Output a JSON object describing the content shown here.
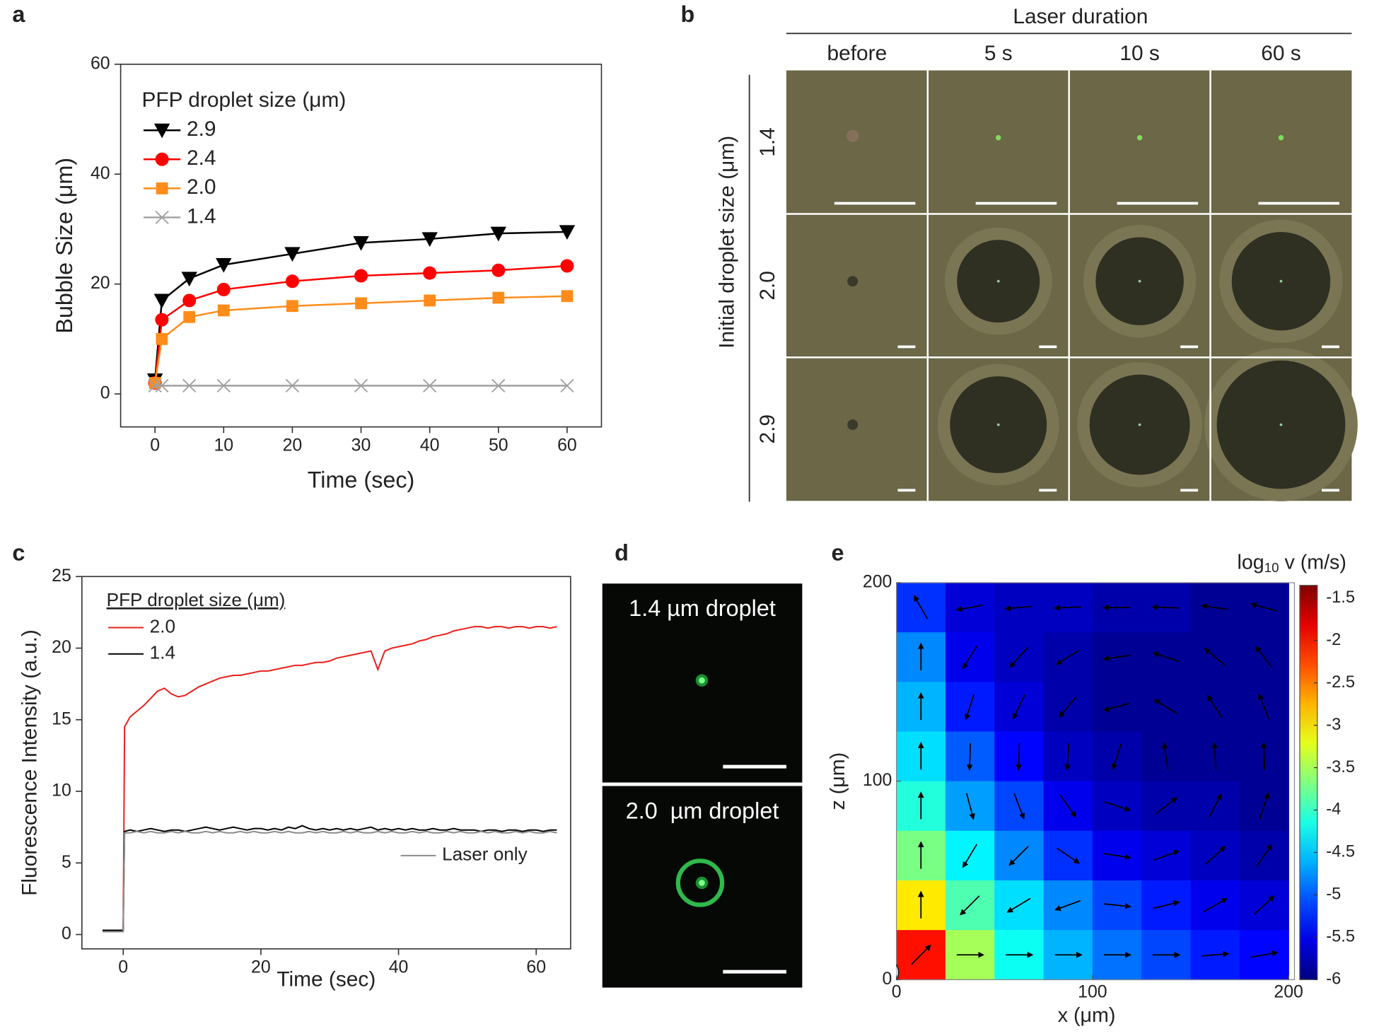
{
  "panel_labels": [
    "a",
    "b",
    "c",
    "d",
    "e"
  ],
  "chart_data": [
    {
      "type": "line",
      "xlabel": "Time (sec)",
      "ylabel": "Bubble Size (μm)",
      "legend_title": "PFP droplet size (μm)",
      "legend": "upper left",
      "x": [
        0,
        1,
        5,
        10,
        20,
        30,
        40,
        50,
        60
      ],
      "series": [
        {
          "name": "2.9",
          "color": "#000000",
          "marker": "triangle-down",
          "values": [
            2.5,
            17,
            21,
            23.5,
            25.5,
            27.5,
            28.2,
            29.2,
            29.5
          ]
        },
        {
          "name": "2.4",
          "color": "#ff0000",
          "marker": "circle",
          "values": [
            2,
            13.5,
            17,
            19,
            20.5,
            21.5,
            22,
            22.5,
            23.3
          ]
        },
        {
          "name": "2.0",
          "color": "#ff8c1a",
          "marker": "square",
          "values": [
            2,
            10,
            14,
            15.2,
            16,
            16.5,
            17,
            17.5,
            17.8
          ]
        },
        {
          "name": "1.4",
          "color": "#a0a0a0",
          "marker": "x",
          "values": [
            1.5,
            1.5,
            1.5,
            1.5,
            1.5,
            1.5,
            1.5,
            1.5,
            1.5
          ]
        }
      ],
      "xlim": [
        -5,
        65
      ],
      "ylim": [
        -6,
        60
      ],
      "xticks": [
        0,
        10,
        20,
        30,
        40,
        50,
        60
      ],
      "yticks": [
        0,
        20,
        40,
        60
      ]
    },
    {
      "type": "line",
      "xlabel": "Time (sec)",
      "ylabel": "Fluorescence Intensity (a.u.)",
      "legend_title": "PFP droplet size (μm)",
      "legend": "upper left",
      "x": [
        -3,
        -2,
        -1,
        0,
        0.2,
        1,
        2,
        3,
        4,
        5,
        6,
        7,
        8,
        9,
        10,
        11,
        12,
        13,
        14,
        15,
        16,
        17,
        18,
        19,
        20,
        21,
        22,
        23,
        24,
        25,
        26,
        27,
        28,
        29,
        30,
        31,
        32,
        33,
        34,
        35,
        36,
        37,
        38,
        39,
        40,
        41,
        42,
        43,
        44,
        45,
        46,
        47,
        48,
        49,
        50,
        51,
        52,
        53,
        54,
        55,
        56,
        57,
        58,
        59,
        60,
        61,
        62,
        63
      ],
      "series": [
        {
          "name": "2.0",
          "color": "#e8201a",
          "values": [
            0.3,
            0.3,
            0.3,
            0.3,
            14.5,
            15.2,
            15.6,
            16.0,
            16.5,
            17.0,
            17.2,
            16.8,
            16.6,
            16.7,
            17.0,
            17.3,
            17.5,
            17.7,
            17.9,
            18.0,
            18.1,
            18.1,
            18.2,
            18.3,
            18.4,
            18.4,
            18.5,
            18.6,
            18.7,
            18.8,
            18.8,
            18.9,
            19.0,
            19.0,
            19.1,
            19.3,
            19.4,
            19.5,
            19.6,
            19.7,
            19.8,
            18.5,
            19.8,
            20.0,
            20.1,
            20.2,
            20.3,
            20.5,
            20.6,
            20.8,
            20.9,
            21.0,
            21.2,
            21.3,
            21.4,
            21.5,
            21.5,
            21.4,
            21.5,
            21.5,
            21.4,
            21.5,
            21.5,
            21.4,
            21.5,
            21.5,
            21.4,
            21.5
          ]
        },
        {
          "name": "1.4",
          "color": "#000000",
          "values": [
            0.3,
            0.3,
            0.3,
            0.3,
            7.2,
            7.3,
            7.2,
            7.3,
            7.4,
            7.3,
            7.2,
            7.3,
            7.3,
            7.2,
            7.3,
            7.4,
            7.5,
            7.4,
            7.3,
            7.4,
            7.5,
            7.4,
            7.3,
            7.4,
            7.4,
            7.3,
            7.4,
            7.3,
            7.5,
            7.4,
            7.6,
            7.4,
            7.3,
            7.4,
            7.3,
            7.4,
            7.3,
            7.4,
            7.3,
            7.4,
            7.5,
            7.3,
            7.4,
            7.3,
            7.4,
            7.3,
            7.4,
            7.3,
            7.3,
            7.4,
            7.3,
            7.3,
            7.4,
            7.3,
            7.3,
            7.3,
            7.2,
            7.3,
            7.3,
            7.2,
            7.3,
            7.3,
            7.2,
            7.3,
            7.3,
            7.2,
            7.3,
            7.3
          ]
        },
        {
          "name": "Laser only",
          "color": "#8c8c8c",
          "legend": "lower right",
          "values": [
            0.2,
            0.2,
            0.2,
            0.2,
            7.1,
            7.1,
            7.2,
            7.1,
            7.2,
            7.1,
            7.1,
            7.2,
            7.1,
            7.2,
            7.1,
            7.1,
            7.2,
            7.1,
            7.2,
            7.1,
            7.1,
            7.2,
            7.1,
            7.2,
            7.1,
            7.1,
            7.2,
            7.1,
            7.2,
            7.1,
            7.1,
            7.2,
            7.1,
            7.2,
            7.1,
            7.1,
            7.2,
            7.1,
            7.2,
            7.1,
            7.1,
            7.2,
            7.1,
            7.2,
            7.1,
            7.1,
            7.2,
            7.1,
            7.2,
            7.1,
            7.1,
            7.2,
            7.1,
            7.2,
            7.1,
            7.1,
            7.2,
            7.1,
            7.2,
            7.1,
            7.1,
            7.2,
            7.1,
            7.2,
            7.1,
            7.1,
            7.2,
            7.1
          ]
        }
      ],
      "xlim": [
        -6,
        65
      ],
      "ylim": [
        -1,
        25
      ],
      "xticks": [
        0,
        20,
        40,
        60
      ],
      "yticks": [
        0,
        5,
        10,
        15,
        20,
        25
      ]
    },
    {
      "type": "heatmap",
      "xlabel": "x (μm)",
      "ylabel": "z (μm)",
      "colormap": "jet",
      "colorbar_label": {
        "text": "log",
        "subscript": "10",
        "rest": " v (m/s)"
      },
      "x": [
        12.5,
        37.5,
        62.5,
        87.5,
        112.5,
        137.5,
        162.5,
        187.5
      ],
      "y": [
        187.5,
        162.5,
        137.5,
        112.5,
        87.5,
        62.5,
        37.5,
        12.5
      ],
      "values": [
        [
          -5.2,
          -5.6,
          -5.7,
          -5.7,
          -5.8,
          -5.8,
          -5.9,
          -5.9
        ],
        [
          -4.8,
          -5.5,
          -5.7,
          -5.8,
          -5.9,
          -5.9,
          -5.9,
          -5.9
        ],
        [
          -4.6,
          -5.3,
          -5.6,
          -5.8,
          -5.9,
          -5.9,
          -5.9,
          -5.9
        ],
        [
          -4.4,
          -5.0,
          -5.4,
          -5.7,
          -5.8,
          -5.9,
          -5.9,
          -5.9
        ],
        [
          -4.1,
          -4.7,
          -5.1,
          -5.5,
          -5.7,
          -5.8,
          -5.8,
          -5.9
        ],
        [
          -3.7,
          -4.3,
          -4.8,
          -5.2,
          -5.5,
          -5.6,
          -5.7,
          -5.8
        ],
        [
          -3.0,
          -3.9,
          -4.4,
          -4.8,
          -5.1,
          -5.3,
          -5.5,
          -5.6
        ],
        [
          -2.0,
          -3.5,
          -4.2,
          -4.6,
          -4.9,
          -5.1,
          -5.3,
          -5.4
        ]
      ],
      "angles": [
        [
          120,
          190,
          185,
          182,
          180,
          178,
          172,
          165
        ],
        [
          90,
          238,
          228,
          212,
          188,
          162,
          141,
          128
        ],
        [
          90,
          252,
          244,
          230,
          195,
          148,
          123,
          112
        ],
        [
          90,
          268,
          268,
          266,
          252,
          98,
          93,
          92
        ],
        [
          90,
          285,
          291,
          305,
          342,
          38,
          62,
          72
        ],
        [
          90,
          239,
          225,
          326,
          351,
          20,
          42,
          55
        ],
        [
          90,
          225,
          211,
          200,
          354,
          14,
          30,
          43
        ],
        [
          45,
          0,
          0,
          0,
          0,
          0,
          5,
          10
        ]
      ],
      "xlim": [
        0,
        203
      ],
      "ylim": [
        0,
        200
      ],
      "xticks": [
        0,
        100,
        200
      ],
      "yticks": [
        0,
        100,
        200
      ],
      "zlim": [
        -6,
        -1.35
      ],
      "zticks": [
        -1.5,
        -2,
        -2.5,
        -3,
        -3.5,
        -4,
        -4.5,
        -5,
        -5.5,
        -6
      ]
    }
  ],
  "panel_b": {
    "header": "Laser duration",
    "columns": [
      "before",
      "5 s",
      "10 s",
      "60 s"
    ],
    "rows": [
      "1.4",
      "2.0",
      "2.9"
    ],
    "row_axis": "Initial droplet size (μm)"
  },
  "panel_d": {
    "captions": [
      "1.4 µm droplet",
      "2.0  µm droplet"
    ]
  }
}
